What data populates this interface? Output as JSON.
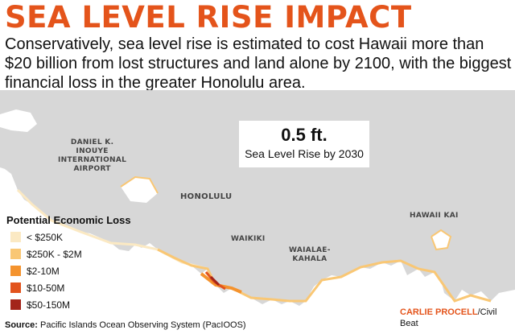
{
  "header": {
    "title": "SEA LEVEL RISE IMPACT",
    "subtitle": "Conservatively, sea level rise is estimated to cost Hawaii more than $20 billion from lost structures and land alone by 2100, with the biggest financial loss in the greater Honolulu area."
  },
  "scenario": {
    "value": "0.5 ft.",
    "label": "Sea Level Rise by 2030"
  },
  "places": {
    "airport": "DANIEL K.\nINOUYE\nINTERNATIONAL\nAIRPORT",
    "honolulu": "HONOLULU",
    "waikiki": "WAIKIKI",
    "waialae": "WAIALAE-\nKAHALA",
    "hawaii_kai": "HAWAII KAI"
  },
  "legend": {
    "title": "Potential Economic Loss",
    "items": [
      {
        "label": "< $250K",
        "color": "#fbe9c3"
      },
      {
        "label": "$250K - $2M",
        "color": "#f9c774"
      },
      {
        "label": "$2-10M",
        "color": "#f4932e"
      },
      {
        "label": "$10-50M",
        "color": "#e2531d"
      },
      {
        "label": "$50-150M",
        "color": "#a3241a"
      }
    ]
  },
  "map_colors": {
    "land": "#d7d7d7",
    "water": "#ffffff"
  },
  "footer": {
    "source_label": "Source:",
    "source_text": "Pacific Islands Ocean Observing System (PacIOOS)",
    "credit_name": "CARLIE PROCELL",
    "credit_org": "/Civil Beat"
  }
}
